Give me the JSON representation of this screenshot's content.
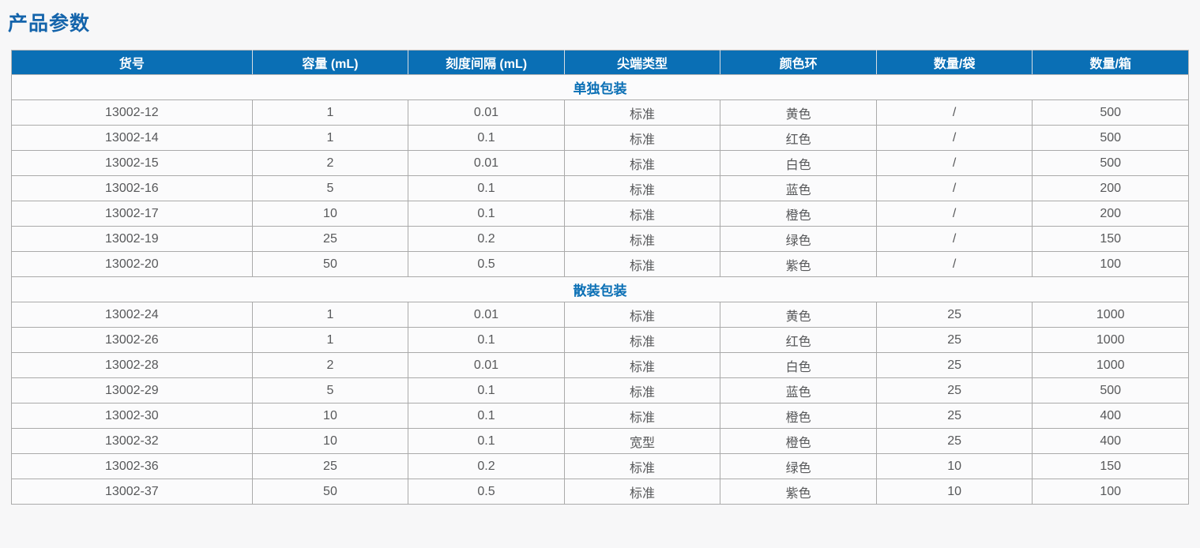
{
  "page": {
    "title": "产品参数"
  },
  "colors": {
    "title_text": "#1464ab",
    "header_bg": "#0a6fb5",
    "header_text": "#ffffff",
    "section_text": "#0a6fb5",
    "cell_text": "#57585a",
    "page_bg": "#f7f7f8",
    "row_bg": "#fbfbfc",
    "grid_border": "#aaaaaa"
  },
  "table": {
    "columns": [
      "货号",
      "容量 (mL)",
      "刻度间隔 (mL)",
      "尖端类型",
      "颜色环",
      "数量/袋",
      "数量/箱"
    ],
    "sections": [
      {
        "label": "单独包装",
        "rows": [
          {
            "item_no": "13002-12",
            "capacity": "1",
            "graduation": "0.01",
            "tip_type": "标准",
            "color_ring": "黄色",
            "qty_per_bag": "/",
            "qty_per_case": "500"
          },
          {
            "item_no": "13002-14",
            "capacity": "1",
            "graduation": "0.1",
            "tip_type": "标准",
            "color_ring": "红色",
            "qty_per_bag": "/",
            "qty_per_case": "500"
          },
          {
            "item_no": "13002-15",
            "capacity": "2",
            "graduation": "0.01",
            "tip_type": "标准",
            "color_ring": "白色",
            "qty_per_bag": "/",
            "qty_per_case": "500"
          },
          {
            "item_no": "13002-16",
            "capacity": "5",
            "graduation": "0.1",
            "tip_type": "标准",
            "color_ring": "蓝色",
            "qty_per_bag": "/",
            "qty_per_case": "200"
          },
          {
            "item_no": "13002-17",
            "capacity": "10",
            "graduation": "0.1",
            "tip_type": "标准",
            "color_ring": "橙色",
            "qty_per_bag": "/",
            "qty_per_case": "200"
          },
          {
            "item_no": "13002-19",
            "capacity": "25",
            "graduation": "0.2",
            "tip_type": "标准",
            "color_ring": "绿色",
            "qty_per_bag": "/",
            "qty_per_case": "150"
          },
          {
            "item_no": "13002-20",
            "capacity": "50",
            "graduation": "0.5",
            "tip_type": "标准",
            "color_ring": "紫色",
            "qty_per_bag": "/",
            "qty_per_case": "100"
          }
        ]
      },
      {
        "label": "散装包装",
        "rows": [
          {
            "item_no": "13002-24",
            "capacity": "1",
            "graduation": "0.01",
            "tip_type": "标准",
            "color_ring": "黄色",
            "qty_per_bag": "25",
            "qty_per_case": "1000"
          },
          {
            "item_no": "13002-26",
            "capacity": "1",
            "graduation": "0.1",
            "tip_type": "标准",
            "color_ring": "红色",
            "qty_per_bag": "25",
            "qty_per_case": "1000"
          },
          {
            "item_no": "13002-28",
            "capacity": "2",
            "graduation": "0.01",
            "tip_type": "标准",
            "color_ring": "白色",
            "qty_per_bag": "25",
            "qty_per_case": "1000"
          },
          {
            "item_no": "13002-29",
            "capacity": "5",
            "graduation": "0.1",
            "tip_type": "标准",
            "color_ring": "蓝色",
            "qty_per_bag": "25",
            "qty_per_case": "500"
          },
          {
            "item_no": "13002-30",
            "capacity": "10",
            "graduation": "0.1",
            "tip_type": "标准",
            "color_ring": "橙色",
            "qty_per_bag": "25",
            "qty_per_case": "400"
          },
          {
            "item_no": "13002-32",
            "capacity": "10",
            "graduation": "0.1",
            "tip_type": "宽型",
            "color_ring": "橙色",
            "qty_per_bag": "25",
            "qty_per_case": "400"
          },
          {
            "item_no": "13002-36",
            "capacity": "25",
            "graduation": "0.2",
            "tip_type": "标准",
            "color_ring": "绿色",
            "qty_per_bag": "10",
            "qty_per_case": "150"
          },
          {
            "item_no": "13002-37",
            "capacity": "50",
            "graduation": "0.5",
            "tip_type": "标准",
            "color_ring": "紫色",
            "qty_per_bag": "10",
            "qty_per_case": "100"
          }
        ]
      }
    ]
  }
}
